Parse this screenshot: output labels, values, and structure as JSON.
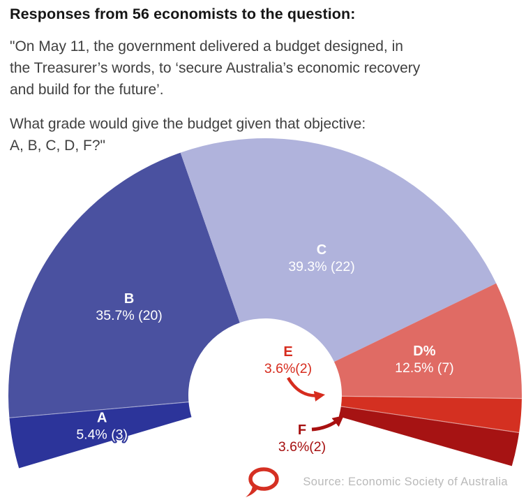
{
  "header": {
    "title": "Responses from 56 economists to the question:",
    "quote": "\"On May 11, the government delivered a budget designed, in\nthe Treasurer’s words, to ‘secure Australia’s economic recovery\nand build for the future’.",
    "question": "What grade would give the budget given that objective:\nA, B, C, D, F?\""
  },
  "chart_data": {
    "type": "pie",
    "variant": "half-donut-gauge",
    "title": "Responses from 56 economists to the question",
    "total_respondents": 56,
    "categories": [
      "A",
      "B",
      "C",
      "D",
      "E",
      "F"
    ],
    "values_pct": [
      5.4,
      35.7,
      39.3,
      12.5,
      3.6,
      3.6
    ],
    "counts": [
      3,
      20,
      22,
      7,
      2,
      2
    ],
    "slices": [
      {
        "label": "A",
        "value_text": "5.4% (3)",
        "pct": 5.4,
        "count": 3,
        "color": "#2c349a",
        "label_placement": "inside-outlined"
      },
      {
        "label": "B",
        "value_text": "35.7% (20)",
        "pct": 35.7,
        "count": 20,
        "color": "#4a51a0",
        "label_placement": "inside"
      },
      {
        "label": "C",
        "value_text": "39.3% (22)",
        "pct": 39.3,
        "count": 22,
        "color": "#b0b3dc",
        "label_placement": "inside"
      },
      {
        "label": "D%",
        "value_text": "12.5% (7)",
        "pct": 12.5,
        "count": 7,
        "color": "#e06b64",
        "label_placement": "inside"
      },
      {
        "label": "E",
        "value_text": "3.6%(2)",
        "pct": 3.6,
        "count": 2,
        "color": "#d43021",
        "label_placement": "external-arrow",
        "label_color": "#d62c1e"
      },
      {
        "label": "F",
        "value_text": "3.6%(2)",
        "pct": 3.6,
        "count": 2,
        "color": "#a61313",
        "label_placement": "external-arrow",
        "label_color": "#a50f0f"
      }
    ],
    "start_angle_degrees": 196.5,
    "sweep_degrees": 212.5,
    "legend_position": "none",
    "grid": false,
    "source": "Source: Economic Society of Australia"
  },
  "footer": {
    "source": "Source: Economic Society of Australia",
    "logo": "the-conversation-speech-bubble",
    "logo_color": "#d53023"
  }
}
